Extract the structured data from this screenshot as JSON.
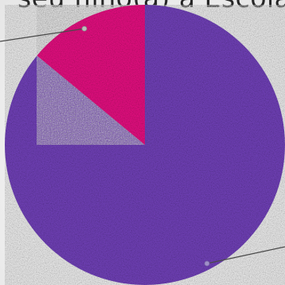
{
  "chart_data": {
    "type": "pie",
    "title": "seu filho(a) à Escola",
    "slices": [
      {
        "value": 86,
        "color": "#7443bd"
      },
      {
        "value": 14,
        "color": "#ea0d84"
      }
    ],
    "start": "top",
    "direction": "counterclockwise-from-top-for-second-slice",
    "legend": "none"
  }
}
